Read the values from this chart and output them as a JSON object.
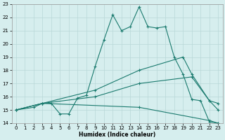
{
  "title": "",
  "xlabel": "Humidex (Indice chaleur)",
  "bg_color": "#d6eeee",
  "grid_color": "#b8d8d8",
  "line_color": "#1a7a6e",
  "xlim": [
    -0.5,
    23.5
  ],
  "ylim": [
    14,
    23
  ],
  "xticks": [
    0,
    1,
    2,
    3,
    4,
    5,
    6,
    7,
    8,
    9,
    10,
    11,
    12,
    13,
    14,
    15,
    16,
    17,
    18,
    19,
    20,
    21,
    22,
    23
  ],
  "yticks": [
    14,
    15,
    16,
    17,
    18,
    19,
    20,
    21,
    22,
    23
  ],
  "series1_x": [
    0,
    2,
    3,
    4,
    5,
    6,
    7,
    8,
    9,
    10,
    11,
    12,
    13,
    14,
    15,
    16,
    17,
    18,
    19,
    20,
    21,
    22,
    23
  ],
  "series1_y": [
    15,
    15.2,
    15.5,
    15.5,
    14.7,
    14.7,
    15.9,
    16.1,
    18.3,
    20.3,
    22.2,
    21.0,
    21.3,
    22.8,
    21.3,
    21.2,
    21.3,
    19.0,
    17.7,
    15.8,
    15.7,
    14.1,
    14.0
  ],
  "series2_x": [
    0,
    3,
    9,
    14,
    19,
    20,
    22,
    23
  ],
  "series2_y": [
    15,
    15.5,
    16.5,
    18.0,
    19.0,
    17.7,
    15.7,
    15.5
  ],
  "series3_x": [
    0,
    3,
    9,
    14,
    20,
    22,
    23
  ],
  "series3_y": [
    15,
    15.5,
    16.0,
    17.0,
    17.5,
    15.7,
    15.0
  ],
  "series4_x": [
    0,
    3,
    14,
    22,
    23
  ],
  "series4_y": [
    15,
    15.5,
    15.2,
    14.2,
    14.0
  ]
}
